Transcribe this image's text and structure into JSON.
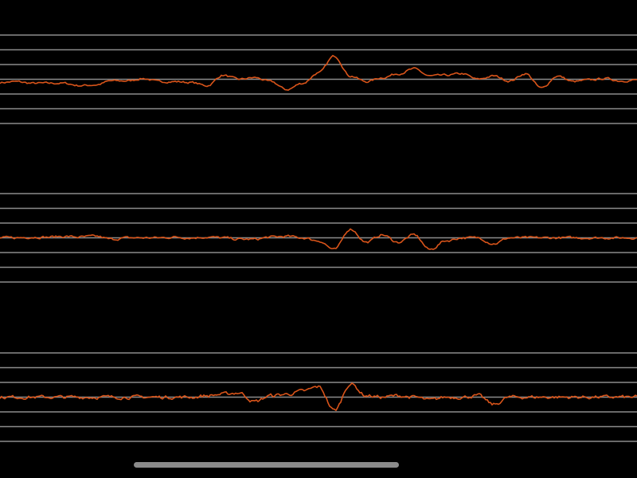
{
  "colors": {
    "background": "#000000",
    "grid_line": "#8c8c8c",
    "trace": "#d9541a",
    "scrollbar": "#8a8a8a"
  },
  "grid_lines_per_panel": 7,
  "traces": [
    {
      "amplitudes": [
        -0.22,
        -0.16,
        -0.27,
        -0.27,
        -0.27,
        -0.43,
        -0.38,
        -0.11,
        -0.11,
        0.05,
        -0.16,
        -0.16,
        -0.22,
        -0.43,
        0.27,
        0,
        0.11,
        -0.16,
        -0.7,
        -0.27,
        0.43,
        1.57,
        0.22,
        -0.16,
        0.11,
        0.38,
        0.7,
        0.22,
        0.27,
        0.38,
        0,
        0.22,
        -0.11,
        0.38,
        -0.6,
        0.22,
        -0.16,
        -0.05,
        0.05,
        -0.11,
        -0.05
      ],
      "noise": 0.06
    },
    {
      "amplitudes": [
        0,
        0,
        0.05,
        0.05,
        0.1,
        0.05,
        0.1,
        -0.1,
        0,
        0,
        0,
        0.05,
        0,
        0.05,
        0,
        -0.1,
        -0.1,
        0.05,
        0.1,
        0,
        -0.2,
        -0.8,
        0.6,
        -0.3,
        0.2,
        -0.3,
        0.2,
        -0.8,
        -0.2,
        0,
        0,
        -0.4,
        0,
        0,
        0,
        0,
        0,
        0,
        0,
        0,
        0
      ],
      "noise": 0.07
    },
    {
      "amplitudes": [
        0,
        0,
        0,
        0,
        0,
        0,
        0,
        0,
        0,
        0,
        0,
        0,
        0,
        0.1,
        0.2,
        0.3,
        -0.3,
        0.1,
        0.2,
        0.4,
        0.7,
        -0.9,
        0.9,
        0.1,
        0,
        0.1,
        0,
        -0.2,
        0,
        0,
        0.1,
        -0.5,
        0,
        0,
        0,
        0,
        0,
        0,
        0,
        0,
        0
      ],
      "noise": 0.1
    }
  ],
  "scrollbar": {
    "visible_fraction": 0.42,
    "position_fraction": 0.21
  }
}
